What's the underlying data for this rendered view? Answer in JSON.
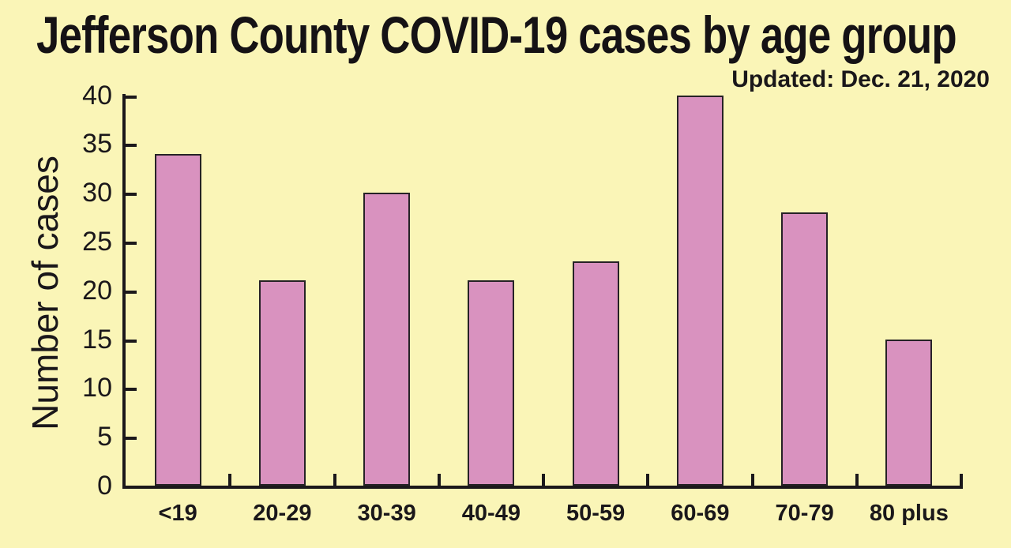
{
  "chart_data": {
    "type": "bar",
    "title": "Jefferson County COVID-19 cases by age group",
    "subtitle": "Updated: Dec. 21, 2020",
    "xlabel": "",
    "ylabel": "Number of cases",
    "categories": [
      "<19",
      "20-29",
      "30-39",
      "40-49",
      "50-59",
      "60-69",
      "70-79",
      "80 plus"
    ],
    "values": [
      34,
      21,
      30,
      21,
      23,
      40,
      28,
      15
    ],
    "yticks": [
      0,
      5,
      10,
      15,
      20,
      25,
      30,
      35,
      40
    ],
    "ylim": [
      0,
      40
    ],
    "grid": false,
    "legend_position": "none",
    "colors": {
      "background": "#FAF5B7",
      "bar_fill": "#D992BF",
      "bar_border": "#262226",
      "axis": "#1B181B",
      "text": "#1A171A"
    }
  }
}
